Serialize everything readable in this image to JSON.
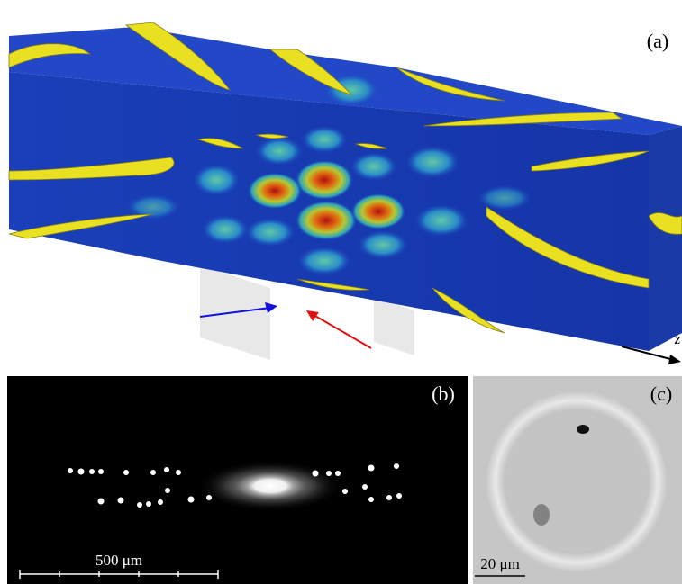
{
  "panels": [
    {
      "label": "(a)",
      "axis_label": "z"
    },
    {
      "label": "(b)",
      "scale_bar": "500 μm"
    },
    {
      "label": "(c)",
      "scale_bar": "20 μm"
    }
  ]
}
